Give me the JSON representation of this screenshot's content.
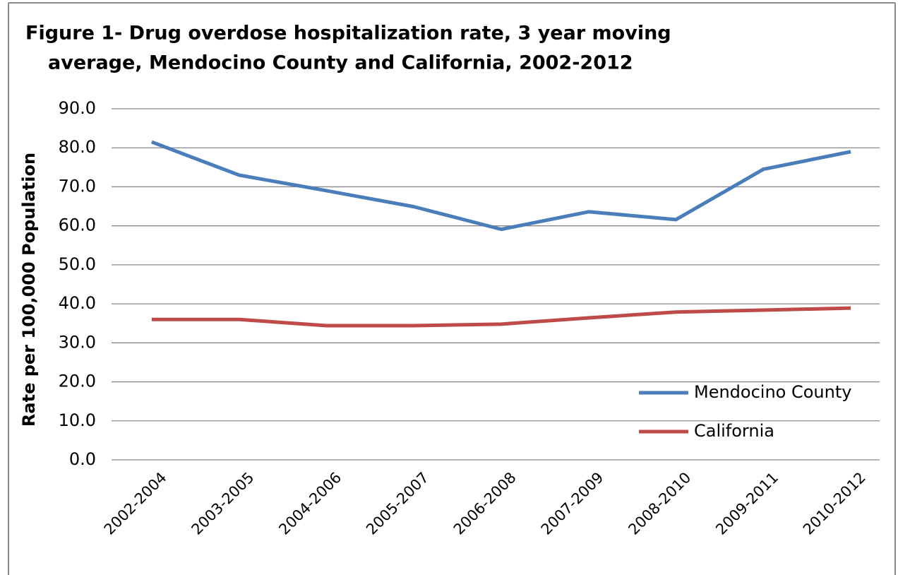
{
  "chart_data": {
    "type": "line",
    "title": [
      "Figure 1- Drug overdose hospitalization  rate, 3 year moving",
      "average, Mendocino County and California, 2002-2012"
    ],
    "y_label": "Rate per 100,000 Population",
    "categories": [
      "2002-2004",
      "2003-2005",
      "2004-2006",
      "2005-2007",
      "2006-2008",
      "2007-2009",
      "2008-2010",
      "2009-2011",
      "2010-2012"
    ],
    "series": [
      {
        "name": "Mendocino County",
        "color": "#4a7ebb",
        "values": [
          81.5,
          73.0,
          69.0,
          64.9,
          59.1,
          63.6,
          61.6,
          74.5,
          79.0
        ]
      },
      {
        "name": "California",
        "color": "#be4b48",
        "values": [
          36.0,
          36.0,
          34.4,
          34.4,
          34.8,
          36.4,
          37.9,
          38.4,
          38.9
        ]
      }
    ],
    "ylim": [
      0,
      90
    ],
    "yticks": [
      {
        "value": 0,
        "label": "0.0"
      },
      {
        "value": 10,
        "label": "10.0"
      },
      {
        "value": 20,
        "label": "20.0"
      },
      {
        "value": 30,
        "label": "30.0"
      },
      {
        "value": 40,
        "label": "40.0"
      },
      {
        "value": 50,
        "label": "50.0"
      },
      {
        "value": 60,
        "label": "60.0"
      },
      {
        "value": 70,
        "label": "70.0"
      },
      {
        "value": 80,
        "label": "80.0"
      },
      {
        "value": 90,
        "label": "90.0"
      }
    ],
    "grid": true,
    "legend": "lower right"
  }
}
